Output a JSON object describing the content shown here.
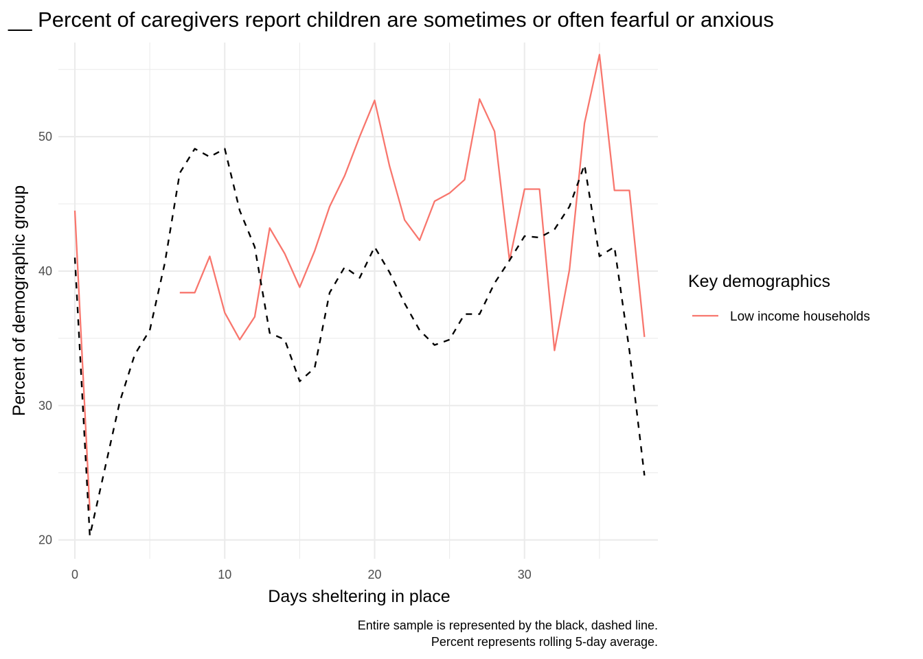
{
  "chart_data": {
    "type": "line",
    "title": "__ Percent of caregivers report children are sometimes or often fearful or anxious",
    "xlabel": "Days sheltering in place",
    "ylabel": "Percent of demographic group",
    "xlim": [
      -1.1,
      38.9
    ],
    "ylim": [
      18.6,
      57.0
    ],
    "x_ticks": [
      0,
      10,
      20,
      30
    ],
    "y_ticks": [
      20,
      30,
      40,
      50
    ],
    "grid": true,
    "legend": {
      "title": "Key demographics",
      "position": "right"
    },
    "caption": [
      "Entire sample is represented by the black, dashed line.",
      "Percent represents rolling 5-day average."
    ],
    "series": [
      {
        "name": "Low income households",
        "color": "#f8766d",
        "dashed": false,
        "in_legend": true,
        "points": [
          [
            0,
            44.5
          ],
          [
            1,
            22.2
          ],
          [
            7,
            38.4
          ],
          [
            8,
            38.4
          ],
          [
            9,
            41.1
          ],
          [
            10,
            36.9
          ],
          [
            11,
            34.9
          ],
          [
            12,
            36.6
          ],
          [
            13,
            43.2
          ],
          [
            14,
            41.3
          ],
          [
            15,
            38.8
          ],
          [
            16,
            41.5
          ],
          [
            17,
            44.8
          ],
          [
            18,
            47.1
          ],
          [
            19,
            50.0
          ],
          [
            20,
            52.7
          ],
          [
            21,
            47.8
          ],
          [
            22,
            43.8
          ],
          [
            23,
            42.3
          ],
          [
            24,
            45.2
          ],
          [
            25,
            45.8
          ],
          [
            26,
            46.8
          ],
          [
            27,
            52.8
          ],
          [
            28,
            50.4
          ],
          [
            29,
            40.8
          ],
          [
            30,
            46.1
          ],
          [
            31,
            46.1
          ],
          [
            32,
            34.1
          ],
          [
            33,
            40.1
          ],
          [
            34,
            51.0
          ],
          [
            35,
            56.1
          ],
          [
            36,
            46.0
          ],
          [
            37,
            46.0
          ],
          [
            38,
            35.1
          ]
        ]
      },
      {
        "name": "",
        "color": "#000000",
        "dashed": true,
        "in_legend": false,
        "points": [
          [
            0,
            41.0
          ],
          [
            1,
            20.3
          ],
          [
            2,
            25.3
          ],
          [
            3,
            30.3
          ],
          [
            4,
            33.8
          ],
          [
            5,
            35.6
          ],
          [
            6,
            40.6
          ],
          [
            7,
            47.3
          ],
          [
            8,
            49.1
          ],
          [
            9,
            48.5
          ],
          [
            10,
            49.1
          ],
          [
            11,
            44.5
          ],
          [
            12,
            41.8
          ],
          [
            13,
            35.4
          ],
          [
            14,
            34.9
          ],
          [
            15,
            31.8
          ],
          [
            16,
            32.8
          ],
          [
            17,
            38.4
          ],
          [
            18,
            40.3
          ],
          [
            19,
            39.5
          ],
          [
            20,
            41.8
          ],
          [
            21,
            39.9
          ],
          [
            22,
            37.6
          ],
          [
            23,
            35.6
          ],
          [
            24,
            34.5
          ],
          [
            25,
            34.9
          ],
          [
            26,
            36.8
          ],
          [
            27,
            36.8
          ],
          [
            28,
            39.1
          ],
          [
            29,
            40.8
          ],
          [
            30,
            42.6
          ],
          [
            31,
            42.5
          ],
          [
            32,
            43.1
          ],
          [
            33,
            44.8
          ],
          [
            34,
            47.9
          ],
          [
            35,
            41.1
          ],
          [
            36,
            41.8
          ],
          [
            37,
            34.1
          ],
          [
            38,
            24.8
          ]
        ]
      }
    ]
  }
}
